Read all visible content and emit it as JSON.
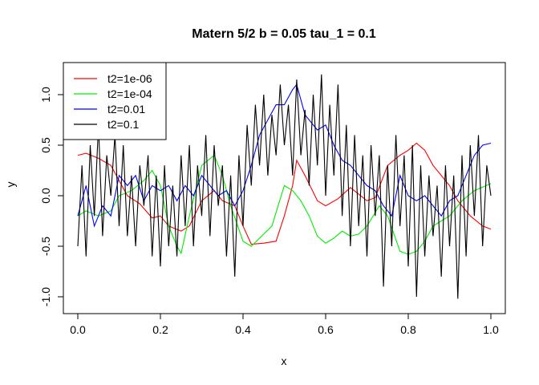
{
  "chart_data": {
    "type": "line",
    "title": "Matern 5/2  b = 0.05  tau_1 = 0.1",
    "xlabel": "x",
    "ylabel": "y",
    "xlim": [
      0,
      1
    ],
    "ylim": [
      -1.05,
      1.25
    ],
    "xticks": [
      0.0,
      0.2,
      0.4,
      0.6,
      0.8,
      1.0
    ],
    "xtick_labels": [
      "0.0",
      "0.2",
      "0.4",
      "0.6",
      "0.8",
      "1.0"
    ],
    "yticks": [
      -1.0,
      -0.5,
      0.0,
      0.5,
      1.0
    ],
    "ytick_labels": [
      "-1.0",
      "-0.5",
      "0.0",
      "0.5",
      "1.0"
    ],
    "grid": false,
    "legend_position": "top-left",
    "series": [
      {
        "name": "t2=1e-06",
        "color": "#ff0000",
        "x": [
          0.0,
          0.02,
          0.05,
          0.08,
          0.1,
          0.12,
          0.15,
          0.18,
          0.2,
          0.22,
          0.25,
          0.27,
          0.3,
          0.33,
          0.35,
          0.38,
          0.4,
          0.42,
          0.45,
          0.48,
          0.5,
          0.52,
          0.53,
          0.55,
          0.58,
          0.6,
          0.63,
          0.66,
          0.7,
          0.72,
          0.75,
          0.78,
          0.8,
          0.82,
          0.84,
          0.86,
          0.9,
          0.92,
          0.95,
          0.98,
          1.0
        ],
        "y": [
          0.4,
          0.42,
          0.37,
          0.3,
          0.15,
          0.0,
          -0.08,
          -0.22,
          -0.2,
          -0.3,
          -0.35,
          -0.3,
          -0.05,
          0.05,
          -0.05,
          -0.1,
          -0.3,
          -0.48,
          -0.47,
          -0.45,
          -0.2,
          0.1,
          0.35,
          0.2,
          -0.05,
          -0.1,
          -0.03,
          0.08,
          -0.05,
          -0.02,
          0.3,
          0.4,
          0.45,
          0.52,
          0.45,
          0.3,
          0.1,
          -0.05,
          -0.2,
          -0.3,
          -0.33
        ]
      },
      {
        "name": "t2=1e-04",
        "color": "#00ee00",
        "x": [
          0.0,
          0.02,
          0.05,
          0.08,
          0.1,
          0.13,
          0.16,
          0.18,
          0.2,
          0.22,
          0.24,
          0.25,
          0.27,
          0.3,
          0.33,
          0.35,
          0.37,
          0.4,
          0.42,
          0.45,
          0.47,
          0.5,
          0.52,
          0.54,
          0.56,
          0.58,
          0.6,
          0.62,
          0.64,
          0.66,
          0.68,
          0.7,
          0.73,
          0.75,
          0.78,
          0.8,
          0.82,
          0.84,
          0.86,
          0.88,
          0.9,
          0.93,
          0.96,
          1.0
        ],
        "y": [
          -0.2,
          -0.15,
          -0.2,
          -0.15,
          0.0,
          0.05,
          0.15,
          0.25,
          0.1,
          -0.3,
          -0.5,
          -0.57,
          -0.2,
          0.3,
          0.4,
          0.2,
          -0.1,
          -0.45,
          -0.5,
          -0.38,
          -0.3,
          0.1,
          0.05,
          -0.05,
          -0.2,
          -0.4,
          -0.47,
          -0.42,
          -0.35,
          -0.4,
          -0.38,
          -0.3,
          -0.1,
          -0.2,
          -0.55,
          -0.58,
          -0.55,
          -0.45,
          -0.3,
          -0.25,
          -0.2,
          -0.05,
          0.05,
          0.12
        ]
      },
      {
        "name": "t2=0.01",
        "color": "#0000ff",
        "x": [
          0.0,
          0.02,
          0.04,
          0.06,
          0.08,
          0.1,
          0.12,
          0.14,
          0.16,
          0.18,
          0.2,
          0.22,
          0.24,
          0.26,
          0.28,
          0.3,
          0.32,
          0.34,
          0.36,
          0.38,
          0.4,
          0.42,
          0.44,
          0.46,
          0.48,
          0.5,
          0.52,
          0.53,
          0.55,
          0.58,
          0.6,
          0.62,
          0.64,
          0.66,
          0.68,
          0.7,
          0.72,
          0.74,
          0.76,
          0.78,
          0.8,
          0.82,
          0.84,
          0.86,
          0.88,
          0.9,
          0.92,
          0.94,
          0.96,
          0.98,
          1.0
        ],
        "y": [
          -0.2,
          0.1,
          -0.3,
          -0.1,
          -0.2,
          0.2,
          0.1,
          0.2,
          -0.05,
          0.1,
          0.05,
          0.1,
          -0.05,
          0.1,
          0.0,
          0.2,
          0.1,
          0.0,
          0.05,
          -0.1,
          0.05,
          0.3,
          0.6,
          0.75,
          0.9,
          0.9,
          1.05,
          1.1,
          0.8,
          0.65,
          0.7,
          0.5,
          0.35,
          0.3,
          0.2,
          0.1,
          0.05,
          -0.1,
          -0.2,
          0.2,
          0.0,
          -0.05,
          0.0,
          -0.1,
          -0.2,
          -0.05,
          0.0,
          0.2,
          0.4,
          0.5,
          0.52
        ]
      },
      {
        "name": "t2=0.1",
        "color": "#000000",
        "x": [
          0.0,
          0.01,
          0.02,
          0.03,
          0.04,
          0.05,
          0.06,
          0.07,
          0.08,
          0.09,
          0.1,
          0.11,
          0.12,
          0.13,
          0.14,
          0.15,
          0.16,
          0.17,
          0.18,
          0.19,
          0.2,
          0.21,
          0.22,
          0.23,
          0.24,
          0.25,
          0.26,
          0.27,
          0.28,
          0.29,
          0.3,
          0.31,
          0.32,
          0.33,
          0.34,
          0.35,
          0.36,
          0.37,
          0.38,
          0.39,
          0.4,
          0.41,
          0.42,
          0.43,
          0.44,
          0.45,
          0.46,
          0.47,
          0.48,
          0.49,
          0.5,
          0.51,
          0.52,
          0.53,
          0.54,
          0.55,
          0.56,
          0.57,
          0.58,
          0.59,
          0.6,
          0.61,
          0.62,
          0.63,
          0.64,
          0.65,
          0.66,
          0.67,
          0.68,
          0.69,
          0.7,
          0.71,
          0.72,
          0.73,
          0.74,
          0.75,
          0.76,
          0.77,
          0.78,
          0.79,
          0.8,
          0.81,
          0.82,
          0.83,
          0.84,
          0.85,
          0.86,
          0.87,
          0.88,
          0.89,
          0.9,
          0.91,
          0.92,
          0.93,
          0.94,
          0.95,
          0.96,
          0.97,
          0.98,
          0.99,
          1.0
        ],
        "y": [
          -0.5,
          0.3,
          -0.6,
          0.5,
          -0.2,
          0.7,
          -0.4,
          0.4,
          0.0,
          0.6,
          -0.3,
          0.5,
          -0.4,
          0.2,
          -0.5,
          0.3,
          -0.1,
          0.4,
          -0.6,
          0.2,
          -0.7,
          0.3,
          -0.5,
          0.1,
          -0.6,
          0.4,
          -0.3,
          0.5,
          -0.5,
          0.3,
          -0.2,
          0.6,
          -0.4,
          0.5,
          -0.1,
          0.3,
          -0.6,
          0.2,
          -0.8,
          0.4,
          -0.3,
          0.7,
          0.1,
          0.9,
          0.3,
          1.0,
          0.2,
          0.8,
          0.4,
          1.1,
          0.5,
          0.9,
          0.2,
          1.15,
          0.4,
          0.85,
          0.1,
          1.0,
          0.3,
          1.2,
          0.0,
          0.9,
          0.2,
          1.1,
          -0.2,
          0.7,
          -0.5,
          0.6,
          -0.3,
          0.4,
          -0.6,
          0.5,
          -0.2,
          0.4,
          -0.9,
          0.3,
          -0.5,
          0.6,
          -0.3,
          0.4,
          -0.7,
          0.5,
          -1.0,
          0.3,
          -0.6,
          0.2,
          -0.4,
          0.1,
          -0.8,
          0.3,
          -0.5,
          0.2,
          -1.02,
          0.4,
          -0.6,
          0.5,
          -0.2,
          0.6,
          -0.5,
          0.3,
          0.0
        ]
      }
    ]
  }
}
